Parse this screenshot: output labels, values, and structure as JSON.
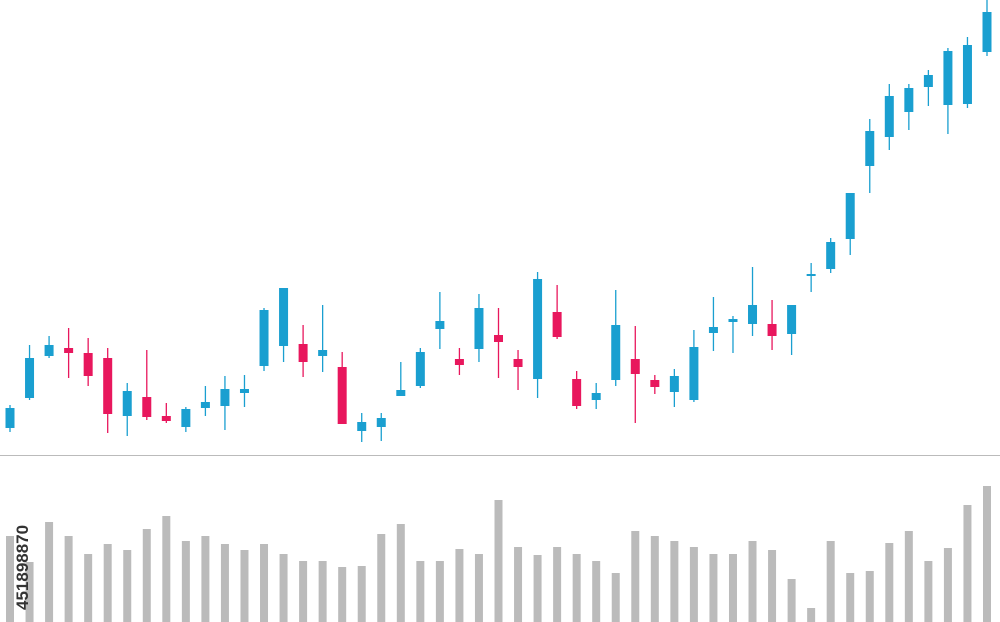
{
  "chart_data": {
    "type": "candlestick",
    "open": [
      27,
      57,
      99,
      107,
      102,
      97,
      39,
      58,
      39,
      28,
      47,
      49,
      62,
      89,
      109,
      111,
      99,
      88,
      24,
      28,
      59,
      69,
      126,
      96,
      106,
      120,
      96,
      76,
      143,
      76,
      55,
      75,
      96,
      75,
      63,
      55,
      122,
      133,
      131,
      131,
      121,
      179,
      186,
      216,
      289,
      318,
      343,
      368,
      350,
      351,
      403
    ],
    "high": [
      50,
      110,
      119,
      127,
      117,
      107,
      72,
      105,
      52,
      48,
      69,
      79,
      80,
      147,
      167,
      130,
      150,
      103,
      42,
      42,
      93,
      107,
      163,
      107,
      161,
      147,
      105,
      183,
      170,
      84,
      72,
      165,
      129,
      80,
      86,
      125,
      158,
      139,
      188,
      155,
      150,
      192,
      217,
      262,
      336,
      371,
      371,
      385,
      407,
      418,
      455
    ],
    "low": [
      23,
      55,
      97,
      77,
      69,
      22,
      19,
      35,
      32,
      23,
      39,
      25,
      48,
      84,
      93,
      78,
      83,
      31,
      13,
      14,
      59,
      67,
      106,
      80,
      93,
      77,
      65,
      57,
      116,
      46,
      46,
      69,
      32,
      61,
      48,
      53,
      104,
      102,
      119,
      105,
      100,
      163,
      182,
      200,
      262,
      305,
      325,
      349,
      321,
      347,
      399
    ],
    "close": [
      47,
      97,
      110,
      102,
      79,
      41,
      64,
      38,
      34,
      46,
      53,
      66,
      66,
      145,
      167,
      93,
      105,
      31,
      33,
      37,
      65,
      103,
      134,
      90,
      147,
      113,
      88,
      176,
      118,
      49,
      62,
      130,
      81,
      68,
      79,
      108,
      128,
      136,
      150,
      119,
      150,
      181,
      213,
      262,
      324,
      359,
      367,
      380,
      404,
      410,
      443
    ],
    "volume": [
      86,
      60,
      100,
      86,
      68,
      78,
      72,
      93,
      106,
      81,
      86,
      78,
      72,
      78,
      68,
      61,
      61,
      55,
      56,
      88,
      98,
      61,
      61,
      73,
      68,
      122,
      75,
      67,
      75,
      68,
      61,
      49,
      91,
      86,
      81,
      75,
      68,
      68,
      81,
      72,
      43,
      14,
      81,
      49,
      51,
      79,
      91,
      61,
      74,
      117,
      136
    ],
    "up_color": "#1a9fd0",
    "down_color": "#e8175d",
    "volume_color": "#bbbbbb",
    "ylim": [
      0,
      455
    ],
    "volume_ylim": [
      0,
      167
    ]
  },
  "watermark": "451898870"
}
